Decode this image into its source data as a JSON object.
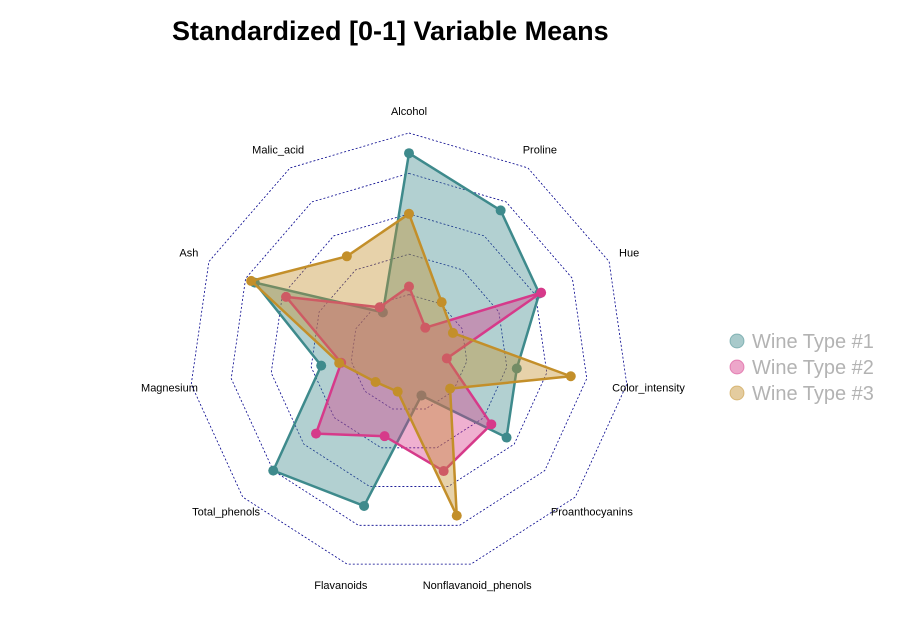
{
  "chart_data": {
    "type": "radar",
    "title": "Standardized [0-1] Variable Means",
    "rlim": [
      0,
      1
    ],
    "grid_levels": 5,
    "axes": [
      "Alcohol",
      "Proline",
      "Hue",
      "Color_intensity",
      "Proanthocyanins",
      "Nonflavanoid_phenols",
      "Flavanoids",
      "Total_phenols",
      "Magnesium",
      "Ash",
      "Malic_acid"
    ],
    "series": [
      {
        "name": "Wine Type #1",
        "color": "#3e8a8c",
        "values": [
          0.9,
          0.75,
          0.62,
          0.45,
          0.55,
          0.13,
          0.7,
          0.8,
          0.35,
          0.75,
          0.15
        ]
      },
      {
        "name": "Wine Type #2",
        "color": "#d63a8a",
        "values": [
          0.24,
          0.06,
          0.63,
          0.1,
          0.45,
          0.52,
          0.34,
          0.52,
          0.25,
          0.58,
          0.18
        ]
      },
      {
        "name": "Wine Type #3",
        "color": "#c38f2a",
        "values": [
          0.6,
          0.21,
          0.15,
          0.72,
          0.18,
          0.75,
          0.11,
          0.13,
          0.26,
          0.77,
          0.48
        ]
      }
    ],
    "legend": {
      "position": "right",
      "entries": [
        "Wine Type #1",
        "Wine Type #2",
        "Wine Type #3"
      ]
    }
  }
}
